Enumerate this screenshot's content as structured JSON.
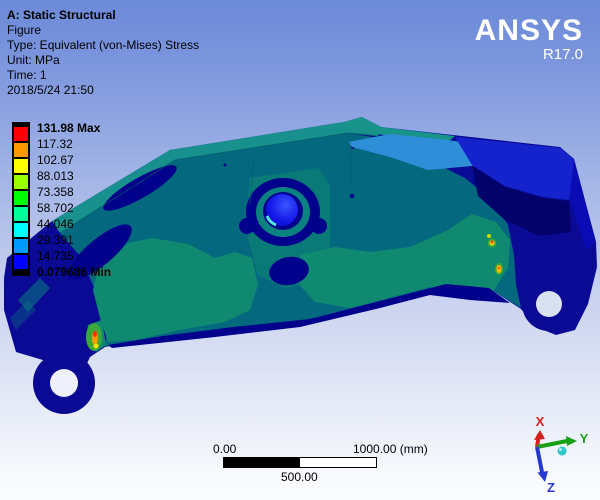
{
  "header": {
    "title": "A: Static Structural",
    "figure": "Figure",
    "type": "Type: Equivalent (von-Mises) Stress",
    "unit": "Unit: MPa",
    "time": "Time: 1",
    "date": "2018/5/24 21:50"
  },
  "brand": {
    "name": "ANSYS",
    "version": "R17.0"
  },
  "legend": {
    "values": [
      "131.98 Max",
      "117.32",
      "102.67",
      "88.013",
      "73.358",
      "58.702",
      "44.046",
      "29.391",
      "14.735",
      "0.079686 Min"
    ],
    "band_colors": [
      "#ff0000",
      "#ff9900",
      "#ffff00",
      "#99ff00",
      "#00ff00",
      "#00ff99",
      "#00ffff",
      "#0099ff",
      "#0000ff"
    ]
  },
  "scale_bar": {
    "start": "0.00",
    "mid": "500.00",
    "end": "1000.00 (mm)"
  },
  "triad": {
    "x_label": "X",
    "y_label": "Y",
    "z_label": "Z",
    "x_color": "#d42020",
    "y_color": "#16a016",
    "z_color": "#2438d0",
    "ball_color": "#2fc9c9"
  }
}
